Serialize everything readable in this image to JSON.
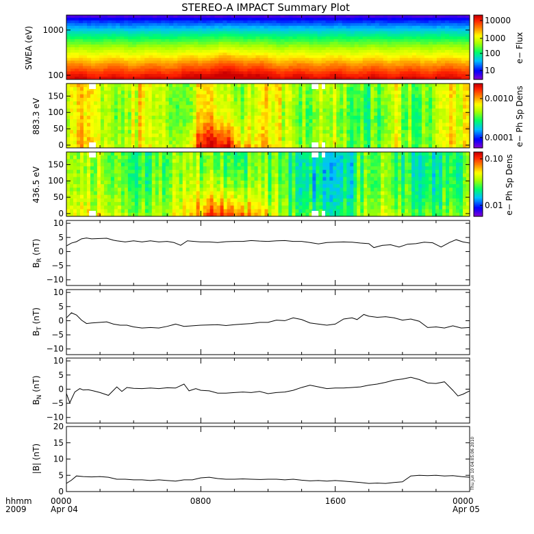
{
  "chart_data": {
    "type": "multi-panel time series with spectrograms",
    "title": "STEREO-A IMPACT Summary Plot",
    "x_axis": {
      "row1_label": "hhmm",
      "row2_label": "2009",
      "ticks": [
        {
          "hhmm": "0000",
          "date": "Apr 04"
        },
        {
          "hhmm": "0800",
          "date": ""
        },
        {
          "hhmm": "1600",
          "date": ""
        },
        {
          "hhmm": "0000",
          "date": "Apr 05"
        }
      ]
    },
    "timestamp_note": "Thu Jun 10 04:05:06 2010",
    "colors": {
      "background": "#ffffff",
      "axes": "#000000",
      "trace": "#000000",
      "missing_data": "#ffffff",
      "spectrogram_palette": [
        "#7a00d6",
        "#0000ff",
        "#00bfff",
        "#00ff66",
        "#a6ff00",
        "#ffff00",
        "#ff8c00",
        "#ff2200",
        "#cc0000"
      ]
    },
    "panels": [
      {
        "id": "swea",
        "type": "heatmap",
        "ylabel": "SWEA (eV)",
        "y_scale": "log",
        "yticks": [
          "1000",
          "100"
        ],
        "colorbar_label": "e− Flux",
        "colorbar_scale": "log",
        "colorbar_ticks": [
          "10000",
          "1000",
          "100",
          "10"
        ],
        "description": "Energy 100-2000 eV; highest flux at low energy, strongest near 0800-1100"
      },
      {
        "id": "pad883",
        "type": "heatmap",
        "ylabel": "883.3 eV",
        "yticks": [
          "150",
          "100",
          "50",
          "0"
        ],
        "yrange": [
          0,
          180
        ],
        "colorbar_label": "e− Ph Sp Dens",
        "colorbar_scale": "log",
        "colorbar_ticks": [
          "0.0010",
          "0.0001"
        ]
      },
      {
        "id": "pad436",
        "type": "heatmap",
        "ylabel": "436.5 eV",
        "yticks": [
          "150",
          "100",
          "50",
          "0"
        ],
        "yrange": [
          0,
          180
        ],
        "colorbar_label": "e− Ph Sp Dens",
        "colorbar_scale": "log",
        "colorbar_ticks": [
          "0.10",
          "0.01"
        ]
      },
      {
        "id": "br",
        "type": "line",
        "ylabel_main": "B",
        "ylabel_sub": "R",
        "ylabel_unit": " (nT)",
        "yrange": [
          -12,
          11
        ],
        "yticks": [
          "10",
          "5",
          "0",
          "−5",
          "−10"
        ],
        "x_hours": [
          0,
          0.3,
          0.6,
          0.9,
          1.2,
          1.5,
          2.0,
          2.4,
          2.8,
          3.0,
          3.5,
          4.0,
          4.5,
          5.0,
          5.5,
          6.0,
          6.4,
          6.8,
          7.2,
          7.6,
          8.0,
          8.5,
          9.0,
          9.5,
          10.0,
          10.5,
          11.0,
          11.5,
          12.0,
          12.5,
          13.0,
          13.5,
          14.0,
          14.5,
          15.0,
          15.5,
          16.0,
          16.5,
          17.0,
          17.5,
          18.0,
          18.3,
          18.8,
          19.3,
          19.8,
          20.3,
          20.8,
          21.3,
          21.8,
          22.3,
          22.8,
          23.2,
          23.6,
          24.0
        ],
        "values": [
          2.0,
          3.0,
          3.5,
          4.5,
          4.8,
          4.5,
          4.6,
          4.7,
          4.0,
          3.8,
          3.4,
          3.8,
          3.4,
          3.8,
          3.4,
          3.6,
          3.2,
          2.2,
          3.8,
          3.6,
          3.4,
          3.4,
          3.2,
          3.5,
          3.6,
          3.6,
          3.9,
          3.7,
          3.6,
          3.8,
          3.9,
          3.6,
          3.6,
          3.2,
          2.7,
          3.2,
          3.3,
          3.4,
          3.3,
          3.0,
          2.8,
          1.4,
          2.2,
          2.4,
          1.6,
          2.6,
          2.8,
          3.3,
          3.1,
          1.6,
          3.2,
          4.2,
          3.4,
          3.0
        ]
      },
      {
        "id": "bt",
        "type": "line",
        "ylabel_main": "B",
        "ylabel_sub": "T",
        "ylabel_unit": " (nT)",
        "yrange": [
          -12,
          11
        ],
        "yticks": [
          "10",
          "5",
          "0",
          "−5",
          "−10"
        ],
        "x_hours": [
          0,
          0.3,
          0.6,
          0.9,
          1.2,
          1.5,
          2.0,
          2.4,
          2.8,
          3.2,
          3.6,
          4.0,
          4.5,
          5.0,
          5.5,
          6.0,
          6.5,
          7.0,
          7.5,
          8.0,
          8.5,
          9.0,
          9.5,
          10.0,
          10.5,
          11.0,
          11.5,
          12.0,
          12.5,
          13.0,
          13.5,
          14.0,
          14.5,
          15.0,
          15.5,
          16.0,
          16.5,
          17.0,
          17.3,
          17.7,
          18.0,
          18.5,
          19.0,
          19.5,
          20.0,
          20.5,
          21.0,
          21.5,
          22.0,
          22.5,
          23.0,
          23.5,
          24.0
        ],
        "values": [
          1.0,
          2.8,
          2.0,
          0.2,
          -1.0,
          -0.8,
          -0.6,
          -0.4,
          -1.2,
          -1.6,
          -1.6,
          -2.2,
          -2.6,
          -2.4,
          -2.6,
          -2.0,
          -1.2,
          -2.0,
          -1.8,
          -1.6,
          -1.5,
          -1.4,
          -1.7,
          -1.4,
          -1.2,
          -1.0,
          -0.6,
          -0.6,
          0.2,
          0.0,
          1.0,
          0.4,
          -0.8,
          -1.2,
          -1.6,
          -1.2,
          0.6,
          1.0,
          0.4,
          2.2,
          1.6,
          1.2,
          1.4,
          1.0,
          0.2,
          0.6,
          -0.2,
          -2.4,
          -2.2,
          -2.6,
          -1.8,
          -2.6,
          -2.4
        ]
      },
      {
        "id": "bn",
        "type": "line",
        "ylabel_main": "B",
        "ylabel_sub": "N",
        "ylabel_unit": " (nT)",
        "yrange": [
          -12,
          11
        ],
        "yticks": [
          "10",
          "5",
          "0",
          "−5",
          "−10"
        ],
        "x_hours": [
          0,
          0.2,
          0.5,
          0.8,
          1.0,
          1.3,
          1.6,
          2.0,
          2.5,
          3.0,
          3.3,
          3.6,
          4.0,
          4.5,
          5.0,
          5.5,
          6.0,
          6.5,
          7.0,
          7.3,
          7.7,
          8.0,
          8.5,
          9.0,
          9.5,
          10.0,
          10.5,
          11.0,
          11.5,
          12.0,
          12.5,
          13.0,
          13.5,
          14.0,
          14.5,
          15.0,
          15.5,
          16.0,
          16.5,
          17.0,
          17.5,
          18.0,
          18.5,
          19.0,
          19.5,
          20.0,
          20.5,
          21.0,
          21.5,
          22.0,
          22.5,
          23.0,
          23.3,
          23.6,
          24.0
        ],
        "values": [
          -1.5,
          -4.8,
          -1.0,
          0.2,
          -0.3,
          -0.2,
          -0.6,
          -1.2,
          -2.2,
          0.8,
          -0.8,
          0.6,
          0.3,
          0.2,
          0.4,
          0.2,
          0.5,
          0.4,
          1.8,
          -0.6,
          0.2,
          -0.4,
          -0.6,
          -1.4,
          -1.4,
          -1.2,
          -1.0,
          -1.2,
          -0.8,
          -1.6,
          -1.2,
          -1.0,
          -0.4,
          0.6,
          1.4,
          0.8,
          0.2,
          0.4,
          0.4,
          0.6,
          0.8,
          1.4,
          1.8,
          2.4,
          3.2,
          3.6,
          4.2,
          3.4,
          2.2,
          2.0,
          2.6,
          -0.4,
          -2.4,
          -1.8,
          -0.6
        ]
      },
      {
        "id": "bmag",
        "type": "line",
        "ylabel_main": "|B|",
        "ylabel_sub": "",
        "ylabel_unit": " (nT)",
        "yrange": [
          0,
          20
        ],
        "yticks": [
          "20",
          "15",
          "10",
          "5",
          "0"
        ],
        "x_hours": [
          0,
          0.3,
          0.6,
          1.0,
          1.5,
          2.0,
          2.5,
          3.0,
          3.5,
          4.0,
          4.5,
          5.0,
          5.5,
          6.0,
          6.5,
          7.0,
          7.5,
          8.0,
          8.5,
          9.0,
          9.5,
          10.0,
          10.5,
          11.0,
          11.5,
          12.0,
          12.5,
          13.0,
          13.5,
          14.0,
          14.5,
          15.0,
          15.5,
          16.0,
          16.5,
          17.0,
          17.5,
          18.0,
          18.5,
          19.0,
          19.5,
          20.0,
          20.5,
          21.0,
          21.5,
          22.0,
          22.5,
          23.0,
          23.5,
          24.0
        ],
        "values": [
          2.5,
          3.5,
          4.8,
          4.6,
          4.5,
          4.6,
          4.4,
          3.8,
          3.8,
          3.6,
          3.6,
          3.4,
          3.6,
          3.4,
          3.2,
          3.6,
          3.6,
          4.2,
          4.4,
          4.0,
          3.8,
          3.8,
          3.9,
          3.8,
          3.7,
          3.8,
          3.8,
          3.6,
          3.8,
          3.5,
          3.3,
          3.4,
          3.2,
          3.4,
          3.2,
          3.0,
          2.8,
          2.5,
          2.6,
          2.5,
          2.8,
          3.0,
          4.8,
          5.0,
          4.9,
          5.0,
          4.8,
          4.9,
          4.6,
          4.4
        ]
      }
    ]
  }
}
